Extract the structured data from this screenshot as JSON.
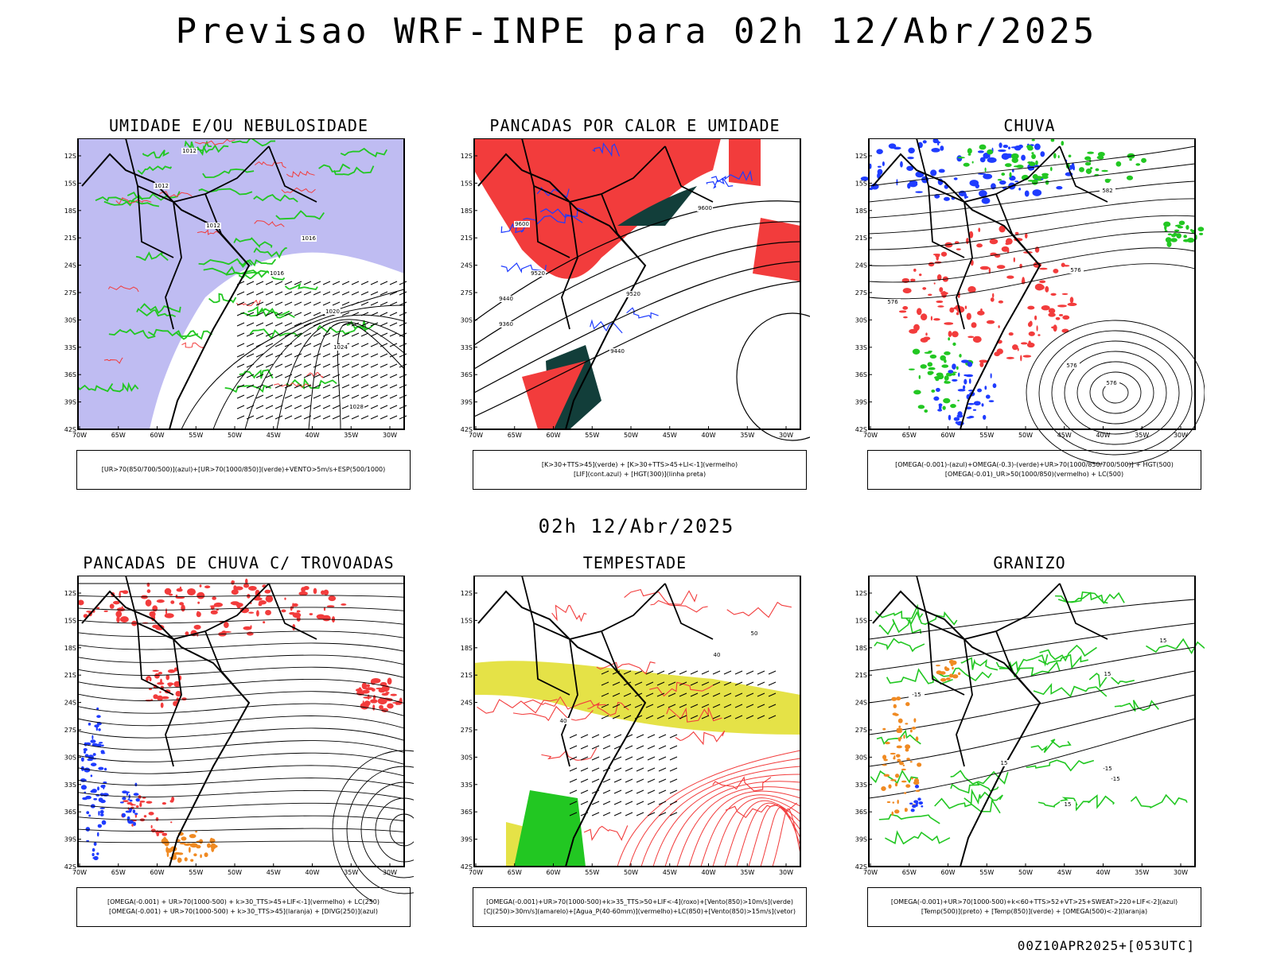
{
  "main_title": "Previsao WRF-INPE  para 02h 12/Abr/2025",
  "mid_title": "02h 12/Abr/2025",
  "footer": "00Z10APR2025+[053UTC]",
  "axes": {
    "lat_labels": [
      "12S",
      "15S",
      "18S",
      "21S",
      "24S",
      "27S",
      "30S",
      "33S",
      "36S",
      "39S",
      "42S"
    ],
    "lon_labels": [
      "70W",
      "65W",
      "60W",
      "55W",
      "50W",
      "45W",
      "40W",
      "35W",
      "30W"
    ]
  },
  "colors": {
    "blue": "#1f3cff",
    "green": "#22c722",
    "red": "#f23c3c",
    "lavender": "#a9a6ee",
    "darkgreen": "#123e3a",
    "yellow": "#e2df33",
    "orange": "#f08a22",
    "black": "#000000"
  },
  "panels": [
    {
      "title": "UMIDADE E/OU NEBULOSIDADE",
      "legend": [
        "[UR>70(850/700/500)](azul)+[UR>70(1000/850)](verde)+VENTO>5m/s+ESP(500/1000)"
      ],
      "contour_labels": [
        "1012",
        "1012",
        "1012",
        "1016",
        "1016",
        "1020",
        "1024",
        "1028"
      ]
    },
    {
      "title": "PANCADAS POR CALOR E UMIDADE",
      "legend": [
        "[K>30+TTS>45](verde) + [K>30+TTS>45+LI<-1](vermelho)",
        "[LIF](cont.azul) + [HGT(300)](linha preta)"
      ],
      "contour_labels": [
        "9600",
        "9520",
        "9440",
        "9360",
        "9600",
        "9520",
        "9440"
      ]
    },
    {
      "title": "CHUVA",
      "legend": [
        "[OMEGA(-0.001)-(azul)+OMEGA(-0.3)-(verde)+UR>70(1000/850/700/500)] + HGT(500)",
        "[OMEGA(-0.01)_UR>50(1000/850)(vermelho) + LC(500)"
      ],
      "contour_labels": [
        "582",
        "576",
        "576",
        "576",
        "576"
      ]
    },
    {
      "title": "PANCADAS DE CHUVA C/ TROVOADAS",
      "legend": [
        "[OMEGA(-0.001) + UR>70(1000-500) + k>30_TTS>45+LIF<-1](vermelho) + LC(250)",
        "[OMEGA(-0.001) + UR>70(1000-500) + k>30_TTS>45](laranja) + [DIVG(250)](azul)"
      ],
      "contour_labels": []
    },
    {
      "title": "TEMPESTADE",
      "legend": [
        "[OMEGA(-0.001)+UR>70(1000-500)+k>35_TTS>50+LIF<-4](roxo)+[Vento(850)>10m/s](verde)",
        "[CJ(250)>30m/s](amarelo)+[Agua_P(40-60mm)](vermelho)+LC(850)+[Vento(850)>15m/s](vetor)"
      ],
      "contour_labels": [
        "40",
        "40",
        "50"
      ]
    },
    {
      "title": "GRANIZO",
      "legend": [
        "[OMEGA(-0.001)+UR>70(1000-500)+k<60+TTS>52+VT>25+SWEAT>220+LIF<-2](azul)",
        "[Temp(500)](preto) + [Temp(850)](verde) + [OMEGA(500)<-2](laranja)"
      ],
      "contour_labels": [
        "-15",
        "-15",
        "15",
        "15",
        "15",
        "15",
        "-15"
      ]
    }
  ]
}
